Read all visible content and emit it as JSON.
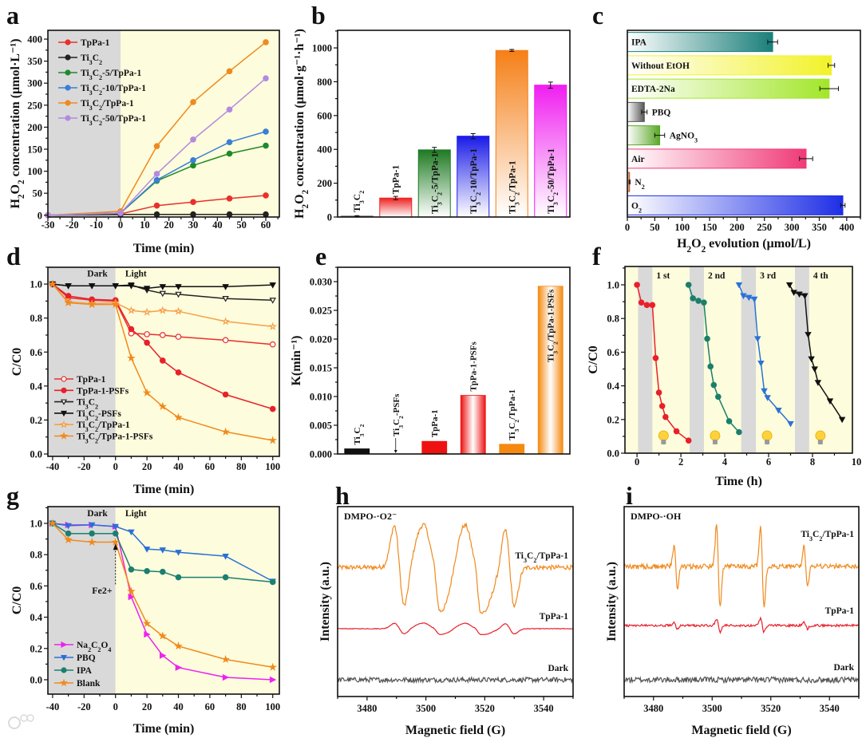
{
  "panel_letters": [
    "a",
    "b",
    "c",
    "d",
    "e",
    "f",
    "g",
    "h",
    "i"
  ],
  "watermark": "大数跨境",
  "chart_data": [
    {
      "panel": "a",
      "type": "line",
      "xlabel": "Time (min)",
      "ylabel": "H2O2 concentration (μmol·L⁻¹)",
      "xlim": [
        -30,
        60
      ],
      "ylim": [
        0,
        400
      ],
      "xticks": [
        -30,
        -20,
        -10,
        0,
        10,
        20,
        30,
        40,
        50,
        60
      ],
      "yticks": [
        0,
        50,
        100,
        150,
        200,
        250,
        300,
        350,
        400
      ],
      "shading": [
        {
          "from": -30,
          "to": 0,
          "color": "#d9d9d9"
        },
        {
          "from": 0,
          "to": 66,
          "color": "#fdfcdc"
        }
      ],
      "legend": "top-left",
      "x": [
        -30,
        0,
        15,
        30,
        45,
        60
      ],
      "series": [
        {
          "name": "TpPa-1",
          "color": "#e8302a",
          "marker": "circle",
          "values": [
            0,
            3,
            22,
            30,
            38,
            45
          ]
        },
        {
          "name": "Ti3C2",
          "color": "#222222",
          "marker": "circle",
          "values": [
            0,
            2,
            2,
            2,
            2,
            2
          ]
        },
        {
          "name": "Ti3C2-5/TpPa-1",
          "color": "#1f8a2a",
          "marker": "circle",
          "values": [
            0,
            5,
            78,
            113,
            140,
            158
          ]
        },
        {
          "name": "Ti3C2-10/TpPa-1",
          "color": "#3a7fd5",
          "marker": "circle",
          "values": [
            0,
            5,
            80,
            125,
            166,
            190
          ]
        },
        {
          "name": "Ti3C2/TpPa-1",
          "color": "#f08a1e",
          "marker": "circle",
          "values": [
            0,
            9,
            157,
            257,
            327,
            393
          ]
        },
        {
          "name": "Ti3C2-50/TpPa-1",
          "color": "#b48ae0",
          "marker": "circle",
          "values": [
            0,
            5,
            94,
            172,
            240,
            311
          ]
        }
      ]
    },
    {
      "panel": "b",
      "type": "bar",
      "xlabel": "",
      "ylabel": "H2O2 concentration (μmol·g⁻¹·h⁻¹)",
      "ylim": [
        0,
        1100
      ],
      "yticks": [
        0,
        200,
        400,
        600,
        800,
        1000
      ],
      "categories": [
        "Ti3C2",
        "TpPa-1",
        "Ti3C2-5/TpPa-1",
        "Ti3C2-10/TpPa-1",
        "Ti3C2/TpPa-1",
        "Ti3C2-50/TpPa-1"
      ],
      "values": [
        5,
        112,
        397,
        478,
        985,
        780
      ],
      "errors": [
        3,
        10,
        15,
        15,
        6,
        18
      ],
      "colors": [
        "#555555",
        "#ee2222",
        "#1e7a22",
        "#1a1ae8",
        "#f57f17",
        "#f01ef0"
      ]
    },
    {
      "panel": "c",
      "type": "bar",
      "orientation": "horizontal",
      "xlabel": "H2O2 evolution (μmol/L)",
      "ylabel": "",
      "xlim": [
        0,
        425
      ],
      "xticks": [
        0,
        50,
        100,
        150,
        200,
        250,
        300,
        350,
        400
      ],
      "categories": [
        "IPA",
        "Without EtOH",
        "EDTA-2Na",
        "PBQ",
        "AgNO3",
        "Air",
        "N2",
        "O2"
      ],
      "values": [
        265,
        372,
        368,
        31,
        59,
        326,
        4,
        393
      ],
      "errors": [
        9,
        6,
        17,
        5,
        9,
        12,
        1,
        4
      ],
      "colors": [
        "#1a7f7a",
        "#f2f22a",
        "#a2e62a",
        "#555555",
        "#5aa828",
        "#f03a78",
        "#c05a20",
        "#1e2ee6"
      ]
    },
    {
      "panel": "d",
      "type": "line",
      "xlabel": "Time (min)",
      "ylabel": "C/C0",
      "xlim": [
        -40,
        100
      ],
      "ylim": [
        0,
        1.1
      ],
      "xticks": [
        -40,
        -20,
        0,
        20,
        40,
        60,
        80,
        100
      ],
      "yticks": [
        0.0,
        0.2,
        0.4,
        0.6,
        0.8,
        1.0
      ],
      "annotations": [
        "Dark",
        "Light"
      ],
      "shading": [
        {
          "from": -43,
          "to": 0,
          "color": "#d9d9d9"
        },
        {
          "from": 0,
          "to": 104.2,
          "color": "#fdfcdc"
        }
      ],
      "legend": "bottom-left",
      "x": [
        -40,
        -30,
        -15,
        0,
        10,
        20,
        30,
        40,
        70,
        100
      ],
      "series": [
        {
          "name": "TpPa-1",
          "color": "#e8302a",
          "marker": "circle-open",
          "values": [
            1,
            0.92,
            0.905,
            0.9,
            0.71,
            0.705,
            0.7,
            0.69,
            0.67,
            0.645
          ]
        },
        {
          "name": "TpPa-1-PSFs",
          "color": "#e8202a",
          "marker": "circle",
          "values": [
            1,
            0.93,
            0.91,
            0.905,
            0.735,
            0.655,
            0.55,
            0.48,
            0.35,
            0.265
          ]
        },
        {
          "name": "Ti3C2",
          "color": "#222222",
          "marker": "tri-down-open",
          "values": [
            1,
            0.99,
            0.99,
            0.99,
            0.995,
            0.965,
            0.945,
            0.94,
            0.915,
            0.905
          ]
        },
        {
          "name": "Ti3C2-PSFs",
          "color": "#111111",
          "marker": "tri-down",
          "values": [
            1,
            0.99,
            0.99,
            0.99,
            0.99,
            0.975,
            0.985,
            0.985,
            0.985,
            0.995
          ]
        },
        {
          "name": "Ti3C2/TpPa-1",
          "color": "#f5a04a",
          "marker": "star-open",
          "values": [
            1,
            0.895,
            0.885,
            0.89,
            0.845,
            0.835,
            0.845,
            0.84,
            0.78,
            0.75
          ]
        },
        {
          "name": "Ti3C2/TpPa-1-PSFs",
          "color": "#f08a1e",
          "marker": "star",
          "values": [
            1,
            0.89,
            0.88,
            0.88,
            0.565,
            0.36,
            0.28,
            0.215,
            0.13,
            0.08
          ]
        }
      ]
    },
    {
      "panel": "e",
      "type": "bar",
      "xlabel": "",
      "ylabel": "K(min⁻¹)",
      "ylim": [
        0,
        0.0325
      ],
      "yticks": [
        0.0,
        0.005,
        0.01,
        0.015,
        0.02,
        0.025,
        0.03
      ],
      "categories": [
        "Ti3C2",
        "Ti3C2-PSFs",
        "TpPa-1",
        "TpPa-1-PSFs",
        "Ti3C2/TpPa-1",
        "Ti3C2/TpPa-1-PSFs"
      ],
      "values": [
        0.0009,
        0.0,
        0.0022,
        0.0102,
        0.0017,
        0.0292
      ],
      "colors": [
        "#111111",
        "#111111",
        "#ee1111",
        "#ee1111",
        "#f58a10",
        "#f58a10"
      ],
      "fill_styles": [
        "solid",
        "solid",
        "solid",
        "center-fade",
        "solid",
        "center-fade"
      ]
    },
    {
      "panel": "f",
      "type": "line",
      "xlabel": "Time (h)",
      "ylabel": "C/C0",
      "xlim": [
        -0.5,
        9.8
      ],
      "ylim": [
        0,
        1.1
      ],
      "xticks": [
        0,
        2,
        4,
        6,
        8,
        10
      ],
      "yticks": [
        0.0,
        0.2,
        0.4,
        0.6,
        0.8,
        1.0
      ],
      "shading": [
        {
          "from": 0.05,
          "to": 0.7,
          "color": "#d9d9d9"
        },
        {
          "from": 2.4,
          "to": 3.05,
          "color": "#d9d9d9"
        },
        {
          "from": 4.75,
          "to": 5.42,
          "color": "#d9d9d9"
        },
        {
          "from": 7.2,
          "to": 7.85,
          "color": "#d9d9d9"
        }
      ],
      "cycle_labels": [
        "1 st",
        "2 nd",
        "3 rd",
        "4 th"
      ],
      "series": [
        {
          "name": "1 st",
          "color": "#e8202a",
          "marker": "circle",
          "x": [
            0,
            0.2,
            0.45,
            0.7,
            0.85,
            1.0,
            1.15,
            1.3,
            1.8,
            2.35
          ],
          "values": [
            1,
            0.895,
            0.88,
            0.88,
            0.565,
            0.36,
            0.28,
            0.215,
            0.13,
            0.075
          ]
        },
        {
          "name": "2 nd",
          "color": "#1a7f6a",
          "marker": "circle",
          "x": [
            2.35,
            2.55,
            2.8,
            3.05,
            3.2,
            3.35,
            3.5,
            3.7,
            4.2,
            4.65
          ],
          "values": [
            1,
            0.92,
            0.905,
            0.895,
            0.68,
            0.515,
            0.405,
            0.335,
            0.19,
            0.125
          ]
        },
        {
          "name": "3 rd",
          "color": "#2a72d8",
          "marker": "tri-down",
          "x": [
            4.65,
            4.85,
            5.1,
            5.35,
            5.5,
            5.65,
            5.8,
            5.95,
            6.45,
            7.0
          ],
          "values": [
            1,
            0.935,
            0.925,
            0.915,
            0.68,
            0.535,
            0.37,
            0.33,
            0.255,
            0.175
          ]
        },
        {
          "name": "4 th",
          "color": "#111111",
          "marker": "tri-down",
          "x": [
            6.95,
            7.15,
            7.4,
            7.65,
            7.8,
            7.95,
            8.1,
            8.25,
            8.8,
            9.35
          ],
          "values": [
            1,
            0.955,
            0.945,
            0.935,
            0.705,
            0.56,
            0.5,
            0.42,
            0.31,
            0.2
          ]
        }
      ]
    },
    {
      "panel": "g",
      "type": "line",
      "xlabel": "Time (min)",
      "ylabel": "C/C0",
      "xlim": [
        -40,
        100
      ],
      "ylim": [
        -0.1,
        1.1
      ],
      "xticks": [
        -40,
        -20,
        0,
        20,
        40,
        60,
        80,
        100
      ],
      "yticks": [
        0.0,
        0.2,
        0.4,
        0.6,
        0.8,
        1.0
      ],
      "annotations": [
        "Dark",
        "Light",
        "Fe2+"
      ],
      "shading": [
        {
          "from": -43,
          "to": 0,
          "color": "#d9d9d9"
        },
        {
          "from": 0,
          "to": 104.2,
          "color": "#fdfcdc"
        }
      ],
      "legend": "bottom-left",
      "x": [
        -40,
        -30,
        -15,
        0,
        10,
        20,
        30,
        40,
        70,
        100
      ],
      "series": [
        {
          "name": "Na2C2O4",
          "color": "#ee22ee",
          "marker": "tri-right",
          "values": [
            1,
            0.99,
            0.99,
            0.98,
            0.53,
            0.29,
            0.155,
            0.078,
            0.015,
            0
          ]
        },
        {
          "name": "PBQ",
          "color": "#2a6fd8",
          "marker": "tri-down",
          "values": [
            1,
            0.985,
            0.99,
            0.98,
            0.945,
            0.835,
            0.83,
            0.815,
            0.79,
            0.63
          ]
        },
        {
          "name": "IPA",
          "color": "#1a8070",
          "marker": "circle",
          "values": [
            1,
            0.935,
            0.935,
            0.935,
            0.705,
            0.695,
            0.69,
            0.655,
            0.655,
            0.625
          ]
        },
        {
          "name": "Blank",
          "color": "#f08a1e",
          "marker": "star",
          "values": [
            1,
            0.895,
            0.88,
            0.88,
            0.565,
            0.36,
            0.28,
            0.215,
            0.13,
            0.08
          ]
        }
      ]
    },
    {
      "panel": "h",
      "type": "line",
      "xlabel": "Magnetic field (G)",
      "ylabel": "Intensity (a.u.)",
      "xlim": [
        3470,
        3550
      ],
      "xticks": [
        3480,
        3500,
        3520,
        3540
      ],
      "title": "DMPO-·O2⁻",
      "series": [
        {
          "name": "Ti3C2/TpPa-1",
          "color": "#f08a1e",
          "baseline": 68,
          "scale": 1,
          "noise": 1.2,
          "lines": [
            {
              "center": 3491,
              "width": 1.75,
              "amp": 36
            },
            {
              "center": 3502.5,
              "width": 3.4,
              "amp": 37
            },
            {
              "center": 3503.6,
              "width": 0.8,
              "amp": 7
            },
            {
              "center": 3516.5,
              "width": 3.4,
              "amp": 38
            },
            {
              "center": 3517.6,
              "width": 0.8,
              "amp": 7
            },
            {
              "center": 3528.5,
              "width": 1.6,
              "amp": 34
            }
          ]
        },
        {
          "name": "TpPa-1",
          "color": "#e8202a",
          "baseline": 35.7,
          "scale": 0.13,
          "noise": 0.15,
          "lines": [
            {
              "center": 3491,
              "width": 1.75,
              "amp": 36
            },
            {
              "center": 3502.5,
              "width": 3.4,
              "amp": 37
            },
            {
              "center": 3503.6,
              "width": 0.8,
              "amp": 7
            },
            {
              "center": 3516.5,
              "width": 3.4,
              "amp": 38
            },
            {
              "center": 3517.6,
              "width": 0.8,
              "amp": 7
            },
            {
              "center": 3528.5,
              "width": 1.6,
              "amp": 34
            }
          ]
        },
        {
          "name": "Dark",
          "color": "#555555",
          "baseline": 8.8,
          "scale": 0,
          "noise": 1.3,
          "lines": []
        }
      ]
    },
    {
      "panel": "i",
      "type": "line",
      "xlabel": "Magnetic field (G)",
      "ylabel": "Intensity (a.u.)",
      "xlim": [
        3470,
        3550
      ],
      "xticks": [
        3480,
        3500,
        3520,
        3540
      ],
      "title": "DMPO-·OH",
      "series": [
        {
          "name": "Ti3C2/TpPa-1",
          "color": "#f08a1e",
          "baseline": 68.5,
          "scale": 1,
          "noise": 1.3,
          "lines": [
            {
              "center": 3487.6,
              "width": 0.6,
              "amp": 18
            },
            {
              "center": 3502.1,
              "width": 0.6,
              "amp": 36
            },
            {
              "center": 3517.1,
              "width": 0.6,
              "amp": 36
            },
            {
              "center": 3531.9,
              "width": 0.6,
              "amp": 18
            }
          ]
        },
        {
          "name": "TpPa-1",
          "color": "#e8202a",
          "baseline": 37.4,
          "scale": 0.16,
          "noise": 0.6,
          "lines": [
            {
              "center": 3487.6,
              "width": 0.6,
              "amp": 18
            },
            {
              "center": 3502.1,
              "width": 0.6,
              "amp": 36
            },
            {
              "center": 3517.1,
              "width": 0.6,
              "amp": 36
            },
            {
              "center": 3531.9,
              "width": 0.6,
              "amp": 18
            }
          ]
        },
        {
          "name": "Dark",
          "color": "#555555",
          "baseline": 8.8,
          "scale": 0,
          "noise": 1.5,
          "lines": []
        }
      ]
    }
  ]
}
